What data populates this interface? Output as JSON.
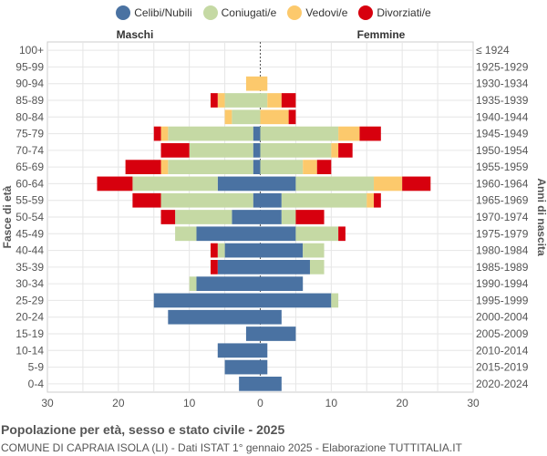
{
  "title": "Popolazione per età, sesso e stato civile - 2025",
  "subtitle": "COMUNE DI CAPRAIA ISOLA (LI) - Dati ISTAT 1° gennaio 2025 - Elaborazione TUTTITALIA.IT",
  "chart_data": {
    "type": "bar",
    "orientation": "horizontal-pyramid",
    "left_label": "Maschi",
    "right_label": "Femmine",
    "ylabel_left": "Fasce di età",
    "ylabel_right": "Anni di nascita",
    "xlim": [
      -30,
      30
    ],
    "xticks": [
      "30",
      "20",
      "10",
      "0",
      "10",
      "20",
      "30"
    ],
    "grid": true,
    "legend_position": "top",
    "series": [
      {
        "name": "Celibi/Nubili",
        "color": "#4a72a2"
      },
      {
        "name": "Coniugati/e",
        "color": "#c5d9a4"
      },
      {
        "name": "Vedovi/e",
        "color": "#fcc96c"
      },
      {
        "name": "Divorziati/e",
        "color": "#d7000e"
      }
    ],
    "age_groups": [
      "100+",
      "95-99",
      "90-94",
      "85-89",
      "80-84",
      "75-79",
      "70-74",
      "65-69",
      "60-64",
      "55-59",
      "50-54",
      "45-49",
      "40-44",
      "35-39",
      "30-34",
      "25-29",
      "20-24",
      "15-19",
      "10-14",
      "5-9",
      "0-4"
    ],
    "birth_years": [
      "≤ 1924",
      "1925-1929",
      "1930-1934",
      "1935-1939",
      "1940-1944",
      "1945-1949",
      "1950-1954",
      "1955-1959",
      "1960-1964",
      "1965-1969",
      "1970-1974",
      "1975-1979",
      "1980-1984",
      "1985-1989",
      "1990-1994",
      "1995-1999",
      "2000-2004",
      "2005-2009",
      "2010-2014",
      "2015-2019",
      "2020-2024"
    ],
    "males": [
      [
        0,
        0,
        0,
        0
      ],
      [
        0,
        0,
        0,
        0
      ],
      [
        0,
        0,
        2,
        0
      ],
      [
        0,
        5,
        1,
        1
      ],
      [
        0,
        4,
        1,
        0
      ],
      [
        1,
        12,
        1,
        1
      ],
      [
        1,
        9,
        0,
        4
      ],
      [
        1,
        12,
        1,
        5
      ],
      [
        6,
        12,
        0,
        5
      ],
      [
        1,
        13,
        0,
        4
      ],
      [
        4,
        8,
        0,
        2
      ],
      [
        9,
        3,
        0,
        0
      ],
      [
        5,
        1,
        0,
        1
      ],
      [
        6,
        0,
        0,
        1
      ],
      [
        9,
        1,
        0,
        0
      ],
      [
        15,
        0,
        0,
        0
      ],
      [
        13,
        0,
        0,
        0
      ],
      [
        2,
        0,
        0,
        0
      ],
      [
        6,
        0,
        0,
        0
      ],
      [
        5,
        0,
        0,
        0
      ],
      [
        3,
        0,
        0,
        0
      ]
    ],
    "females": [
      [
        0,
        0,
        0,
        0
      ],
      [
        0,
        0,
        0,
        0
      ],
      [
        0,
        0,
        1,
        0
      ],
      [
        0,
        1,
        2,
        2
      ],
      [
        0,
        0,
        4,
        1
      ],
      [
        0,
        11,
        3,
        3
      ],
      [
        0,
        10,
        1,
        2
      ],
      [
        0,
        6,
        2,
        2
      ],
      [
        5,
        11,
        4,
        4
      ],
      [
        3,
        12,
        1,
        1
      ],
      [
        3,
        2,
        0,
        4
      ],
      [
        5,
        6,
        0,
        1
      ],
      [
        6,
        3,
        0,
        0
      ],
      [
        7,
        2,
        0,
        0
      ],
      [
        6,
        0,
        0,
        0
      ],
      [
        10,
        1,
        0,
        0
      ],
      [
        3,
        0,
        0,
        0
      ],
      [
        5,
        0,
        0,
        0
      ],
      [
        1,
        0,
        0,
        0
      ],
      [
        1,
        0,
        0,
        0
      ],
      [
        3,
        0,
        0,
        0
      ]
    ]
  }
}
